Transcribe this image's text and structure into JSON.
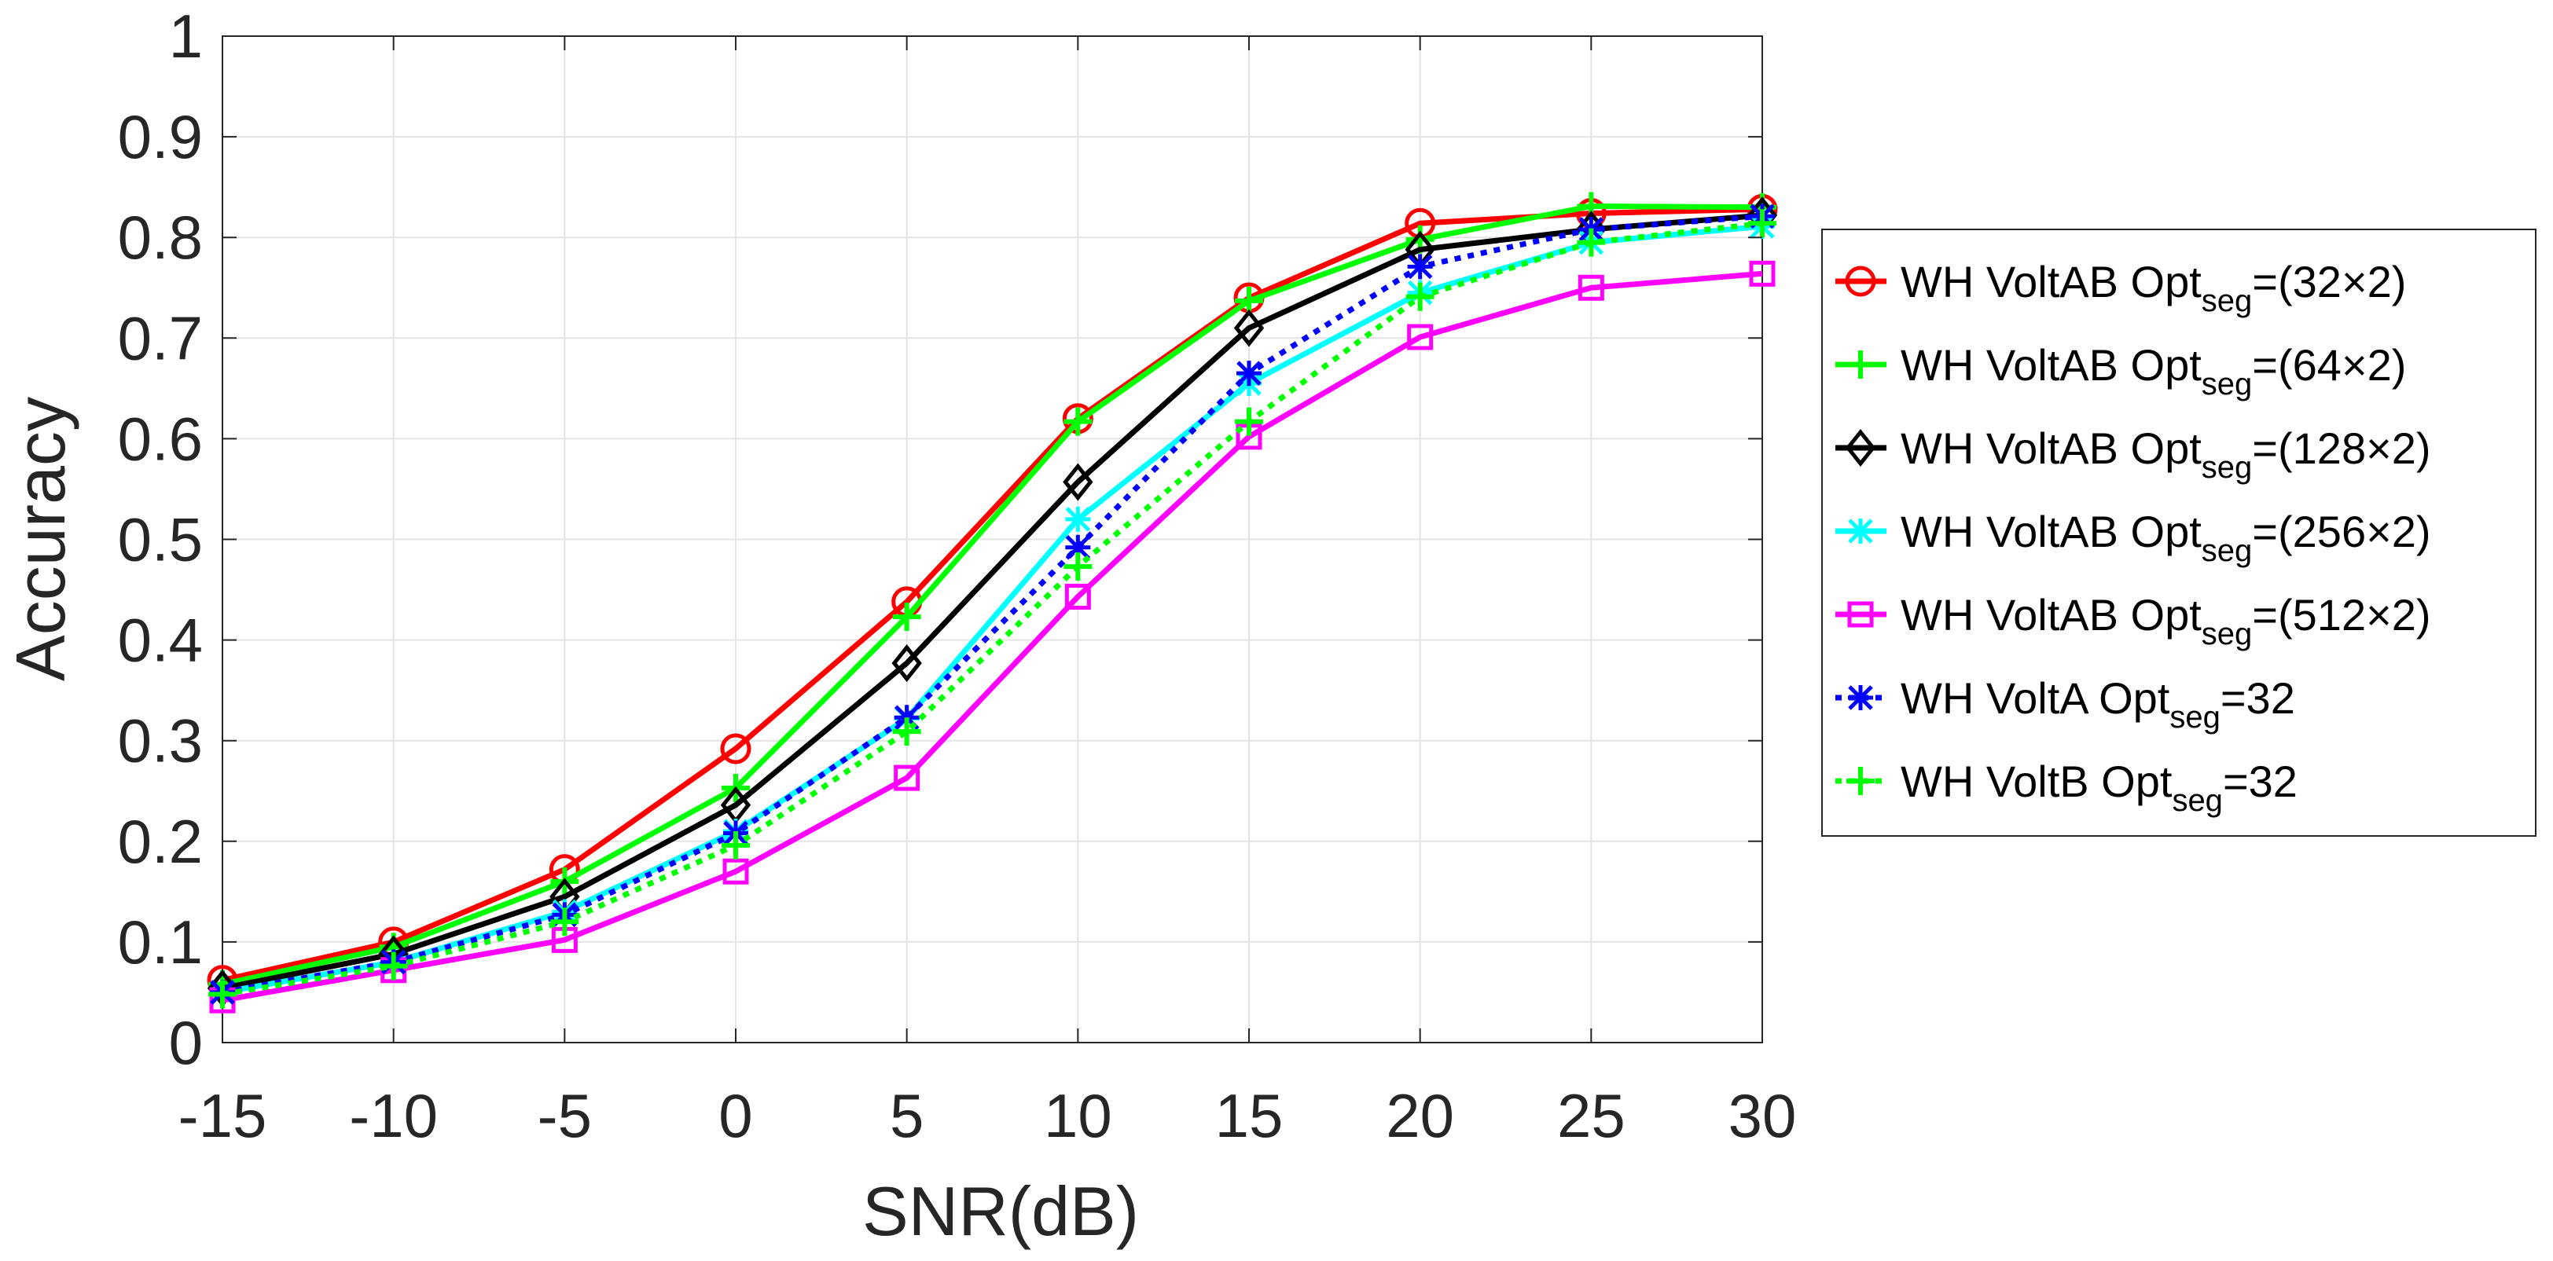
{
  "chart_data": {
    "type": "line",
    "title": "",
    "xlabel": "SNR(dB)",
    "ylabel": "Accuracy",
    "x": [
      -15,
      -10,
      -5,
      0,
      5,
      10,
      15,
      20,
      25,
      30
    ],
    "xlim": [
      -15,
      30
    ],
    "ylim": [
      0,
      1
    ],
    "xticks": [
      -15,
      -10,
      -5,
      0,
      5,
      10,
      15,
      20,
      25,
      30
    ],
    "xtick_labels": [
      "-15",
      "-10",
      "-5",
      "0",
      "5",
      "10",
      "15",
      "20",
      "25",
      "30"
    ],
    "yticks": [
      0,
      0.1,
      0.2,
      0.3,
      0.4,
      0.5,
      0.6,
      0.7,
      0.8,
      0.9,
      1
    ],
    "ytick_labels": [
      "0",
      "0.1",
      "0.2",
      "0.3",
      "0.4",
      "0.5",
      "0.6",
      "0.7",
      "0.8",
      "0.9",
      "1"
    ],
    "grid": true,
    "legend_position": "outside-right",
    "series": [
      {
        "name": "WH VoltAB Opt_seg=(32×2)",
        "label_pre": "WH VoltAB Opt",
        "label_sub": "seg",
        "label_post": "=(32×2)",
        "color": "#ff0000",
        "marker": "circle",
        "dash": "solid",
        "values": [
          0.062,
          0.1,
          0.172,
          0.292,
          0.438,
          0.62,
          0.74,
          0.814,
          0.824,
          0.828
        ]
      },
      {
        "name": "WH VoltAB Opt_seg=(64×2)",
        "label_pre": "WH  VoltAB Opt",
        "label_sub": "seg",
        "label_post": "=(64×2)",
        "color": "#00ff00",
        "marker": "plus",
        "dash": "solid",
        "values": [
          0.058,
          0.095,
          0.16,
          0.253,
          0.423,
          0.617,
          0.737,
          0.798,
          0.831,
          0.83
        ]
      },
      {
        "name": "WH VoltAB Opt_seg=(128×2)",
        "label_pre": "WH  VoltAB Opt",
        "label_sub": "seg",
        "label_post": "=(128×2)",
        "color": "#000000",
        "marker": "diamond",
        "dash": "solid",
        "values": [
          0.054,
          0.088,
          0.145,
          0.236,
          0.377,
          0.557,
          0.71,
          0.788,
          0.808,
          0.822
        ]
      },
      {
        "name": "WH VoltAB Opt_seg=(256×2)",
        "label_pre": "WH VoltAB Opt",
        "label_sub": "seg",
        "label_post": "=(256×2)",
        "color": "#00ffff",
        "marker": "asterisk",
        "dash": "solid",
        "values": [
          0.05,
          0.08,
          0.13,
          0.21,
          0.322,
          0.52,
          0.655,
          0.745,
          0.795,
          0.811
        ]
      },
      {
        "name": "WH VoltAB Opt_seg=(512×2)",
        "label_pre": "WH VoltAB Opt",
        "label_sub": "seg",
        "label_post": "=(512×2)",
        "color": "#ff00ff",
        "marker": "square",
        "dash": "solid",
        "values": [
          0.042,
          0.072,
          0.102,
          0.17,
          0.263,
          0.443,
          0.602,
          0.701,
          0.75,
          0.764
        ]
      },
      {
        "name": "WH VoltA Opt_seg=32",
        "label_pre": "WH  VoltA Opt",
        "label_sub": "seg",
        "label_post": "=32",
        "color": "#0000ff",
        "marker": "asterisk",
        "dash": "dotted",
        "values": [
          0.05,
          0.08,
          0.127,
          0.208,
          0.323,
          0.492,
          0.665,
          0.771,
          0.808,
          0.821
        ]
      },
      {
        "name": "WH VoltB Opt_seg=32",
        "label_pre": "WH  VoltB Opt",
        "label_sub": "seg",
        "label_post": "=32",
        "color": "#00ff00",
        "marker": "plus",
        "dash": "dotted",
        "values": [
          0.048,
          0.076,
          0.12,
          0.196,
          0.309,
          0.473,
          0.617,
          0.741,
          0.795,
          0.814
        ]
      }
    ]
  }
}
